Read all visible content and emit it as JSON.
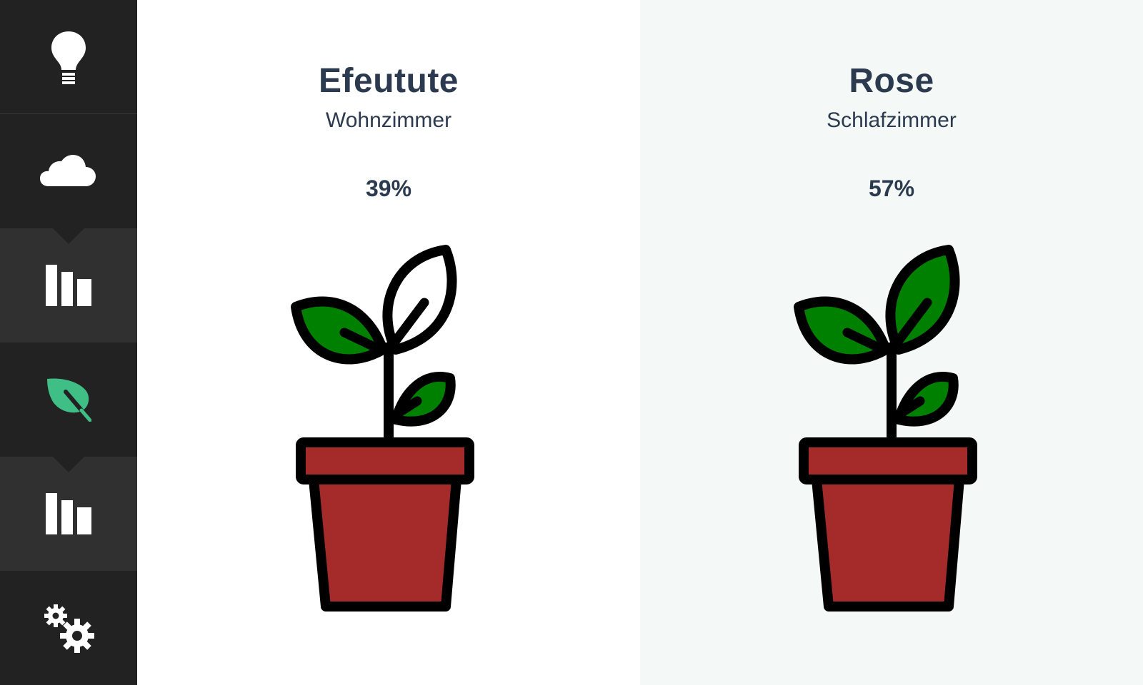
{
  "sidebar": {
    "items": [
      {
        "icon": "lightbulb-icon",
        "active": false
      },
      {
        "icon": "cloud-icon",
        "active": false
      },
      {
        "icon": "bar-chart-icon",
        "active": false
      },
      {
        "icon": "leaf-icon",
        "active": true
      },
      {
        "icon": "bar-chart-icon",
        "active": false
      },
      {
        "icon": "gears-icon",
        "active": false
      }
    ]
  },
  "plants": [
    {
      "name": "Efeutute",
      "room": "Wohnzimmer",
      "moisture": "39%",
      "moisture_value": 0.39
    },
    {
      "name": "Rose",
      "room": "Schlafzimmer",
      "moisture": "57%",
      "moisture_value": 0.57
    }
  ],
  "colors": {
    "sidebar_bg": "#222222",
    "sidebar_highlight": "#303030",
    "active_icon": "#3fbf86",
    "leaf_green": "#008000",
    "pot_red": "#a52a2a",
    "text": "#2b3a4e",
    "panel_alt_bg": "#f4f9f7"
  }
}
